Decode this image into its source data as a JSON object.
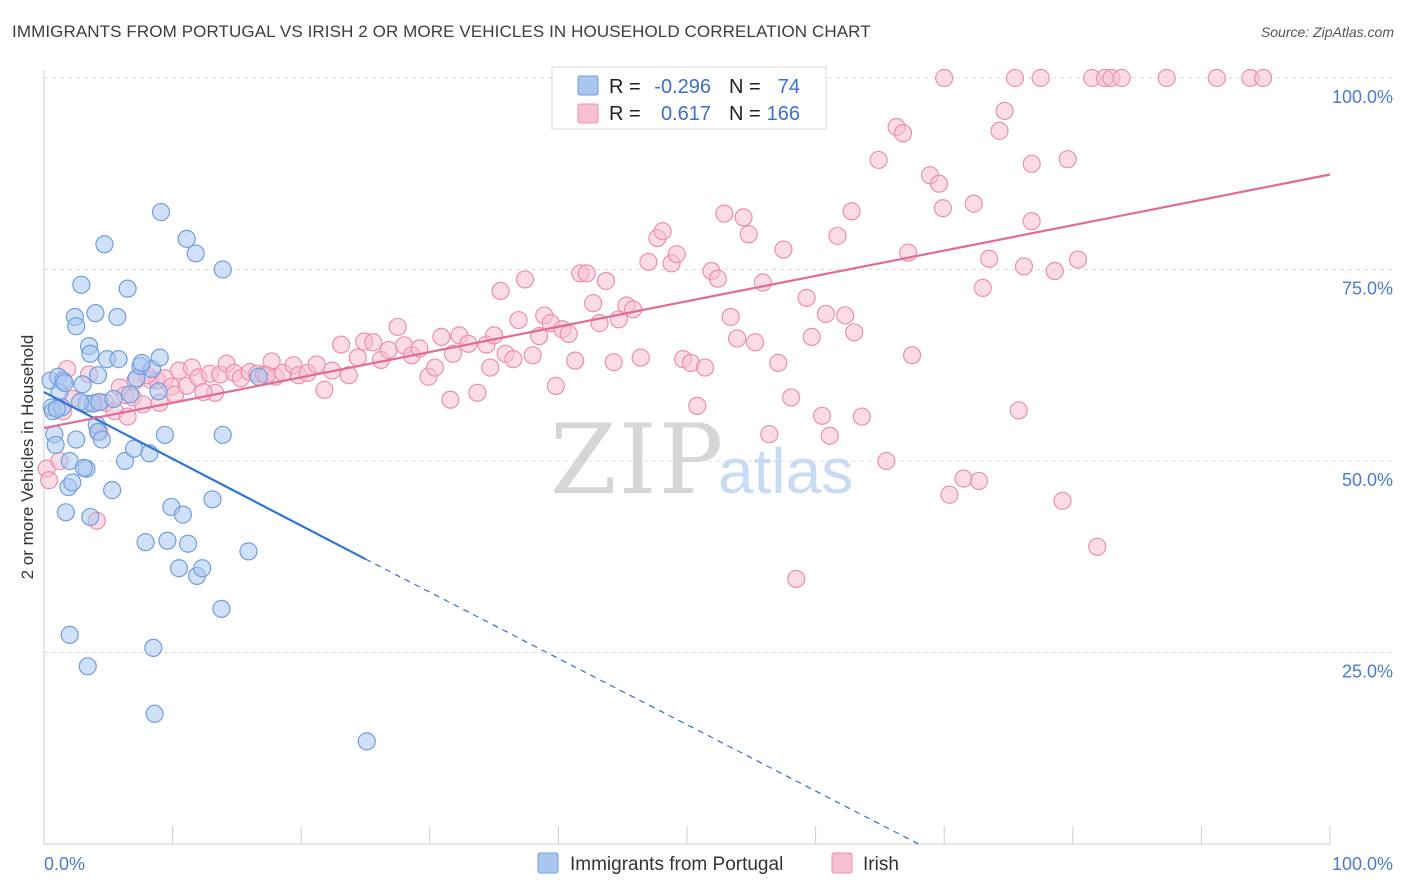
{
  "title": "IMMIGRANTS FROM PORTUGAL VS IRISH 2 OR MORE VEHICLES IN HOUSEHOLD CORRELATION CHART",
  "source": "Source: ZipAtlas.com",
  "watermark": {
    "zip": "ZIP",
    "atlas": "atlas"
  },
  "legend": {
    "r_label": "R =",
    "n_label": "N =",
    "series1": {
      "r": "-0.296",
      "n": "74"
    },
    "series2": {
      "r": "0.617",
      "n": "166"
    }
  },
  "colors": {
    "blue_fill": "#a9c6ee",
    "blue_stroke": "#6f9fe0",
    "blue_line": "#2f74d0",
    "pink_fill": "#f7c0d1",
    "pink_stroke": "#ec8fae",
    "pink_line": "#e26a95",
    "grid": "#dddddd",
    "axis_label": "#4a7bd0"
  },
  "chart_data": {
    "type": "scatter",
    "title": "IMMIGRANTS FROM PORTUGAL VS IRISH 2 OR MORE VEHICLES IN HOUSEHOLD CORRELATION CHART",
    "xlabel": "",
    "ylabel": "2 or more Vehicles in Household",
    "xlim": [
      0,
      100
    ],
    "ylim": [
      0,
      102
    ],
    "x_tick_labels": [
      "0.0%",
      "100.0%"
    ],
    "y_tick_labels": [
      "25.0%",
      "50.0%",
      "75.0%",
      "100.0%"
    ],
    "y_ticks": [
      25,
      50,
      75,
      100
    ],
    "grid": true,
    "legend_position": "top-center",
    "series": [
      {
        "name": "Immigrants from Portugal",
        "r": -0.296,
        "n": 74,
        "trend": {
          "x0": 0,
          "y0": 59.0,
          "x1": 25,
          "y1": 37.2,
          "dashed_to_x": 68,
          "dashed_to_y": 0
        },
        "points": [
          [
            0.5,
            60.5
          ],
          [
            0.6,
            57
          ],
          [
            0.7,
            56.5
          ],
          [
            0.8,
            53.5
          ],
          [
            1.1,
            61
          ],
          [
            1.2,
            59
          ],
          [
            1.4,
            57
          ],
          [
            1.5,
            60.5
          ],
          [
            1.7,
            43.3
          ],
          [
            1.9,
            46.6
          ],
          [
            2.0,
            50
          ],
          [
            2.0,
            27.3
          ],
          [
            2.2,
            47.2
          ],
          [
            2.5,
            52.8
          ],
          [
            2.4,
            68.8
          ],
          [
            2.5,
            67.6
          ],
          [
            2.9,
            73
          ],
          [
            3.0,
            60
          ],
          [
            3.3,
            57.5
          ],
          [
            3.3,
            49
          ],
          [
            3.4,
            23.2
          ],
          [
            3.5,
            65
          ],
          [
            3.6,
            64
          ],
          [
            3.6,
            42.7
          ],
          [
            3.8,
            57.5
          ],
          [
            4.0,
            69.3
          ],
          [
            4.1,
            54.7
          ],
          [
            4.2,
            53.8
          ],
          [
            4.3,
            57.7
          ],
          [
            4.5,
            52.8
          ],
          [
            4.7,
            78.3
          ],
          [
            4.9,
            63.3
          ],
          [
            5.3,
            46.2
          ],
          [
            5.7,
            68.8
          ],
          [
            5.8,
            63.3
          ],
          [
            6.3,
            50
          ],
          [
            6.5,
            72.5
          ],
          [
            6.7,
            58.7
          ],
          [
            7.0,
            51.6
          ],
          [
            7.2,
            60.8
          ],
          [
            7.5,
            62.4
          ],
          [
            7.9,
            39.4
          ],
          [
            8.2,
            51
          ],
          [
            8.4,
            62
          ],
          [
            8.5,
            25.6
          ],
          [
            8.6,
            17
          ],
          [
            8.9,
            59.1
          ],
          [
            9.0,
            63.5
          ],
          [
            9.1,
            82.5
          ],
          [
            9.4,
            53.4
          ],
          [
            9.6,
            39.6
          ],
          [
            9.9,
            44
          ],
          [
            10.5,
            36
          ],
          [
            10.8,
            43
          ],
          [
            11.1,
            79
          ],
          [
            11.2,
            39.2
          ],
          [
            11.8,
            77.1
          ],
          [
            11.9,
            35
          ],
          [
            12.3,
            36
          ],
          [
            13.1,
            45
          ],
          [
            13.8,
            30.7
          ],
          [
            13.9,
            75
          ],
          [
            13.9,
            53.4
          ],
          [
            15.9,
            38.2
          ],
          [
            16.7,
            61
          ],
          [
            25.1,
            13.4
          ],
          [
            1.0,
            56.8
          ],
          [
            2.8,
            57.7
          ],
          [
            0.9,
            52.1
          ],
          [
            4.2,
            61.2
          ],
          [
            7.6,
            62.8
          ],
          [
            5.4,
            58.1
          ],
          [
            1.6,
            60.2
          ],
          [
            3.1,
            49.1
          ]
        ]
      },
      {
        "name": "Irish",
        "r": 0.617,
        "n": 166,
        "trend": {
          "x0": 0,
          "y0": 54.3,
          "x1": 100,
          "y1": 87.4
        },
        "points": [
          [
            0.2,
            49
          ],
          [
            0.4,
            47.5
          ],
          [
            1.2,
            50
          ],
          [
            1.5,
            56.5
          ],
          [
            2.2,
            58.1
          ],
          [
            3.5,
            61.3
          ],
          [
            4.0,
            57.6
          ],
          [
            4.1,
            42.2
          ],
          [
            4.3,
            53.8
          ],
          [
            4.8,
            57.6
          ],
          [
            5.5,
            56.5
          ],
          [
            5.9,
            59.6
          ],
          [
            6.3,
            58.6
          ],
          [
            6.5,
            55.8
          ],
          [
            6.9,
            58.3
          ],
          [
            7.1,
            60.5
          ],
          [
            7.7,
            57.4
          ],
          [
            8.3,
            60.6
          ],
          [
            8.8,
            60.5
          ],
          [
            9.0,
            57.6
          ],
          [
            9.4,
            60.8
          ],
          [
            9.9,
            59.7
          ],
          [
            10.2,
            58.7
          ],
          [
            10.5,
            61.8
          ],
          [
            11.1,
            59.8
          ],
          [
            11.5,
            62.2
          ],
          [
            12.0,
            60.9
          ],
          [
            12.9,
            61.4
          ],
          [
            13.3,
            58.9
          ],
          [
            13.7,
            61.3
          ],
          [
            14.2,
            62.7
          ],
          [
            14.8,
            61.5
          ],
          [
            15.3,
            60.8
          ],
          [
            16.0,
            61.6
          ],
          [
            16.6,
            61.4
          ],
          [
            17.1,
            61.3
          ],
          [
            17.7,
            63.0
          ],
          [
            18.0,
            61
          ],
          [
            18.6,
            61.5
          ],
          [
            19.4,
            62.5
          ],
          [
            19.8,
            61.2
          ],
          [
            20.5,
            61.5
          ],
          [
            21.2,
            62.6
          ],
          [
            21.8,
            59.3
          ],
          [
            22.4,
            61.8
          ],
          [
            23.1,
            65.2
          ],
          [
            23.7,
            61.2
          ],
          [
            24.4,
            63.5
          ],
          [
            24.9,
            65.6
          ],
          [
            25.6,
            65.5
          ],
          [
            26.2,
            63.2
          ],
          [
            26.8,
            64.5
          ],
          [
            27.5,
            67.5
          ],
          [
            28.0,
            65.1
          ],
          [
            28.6,
            63.8
          ],
          [
            29.2,
            64.7
          ],
          [
            29.9,
            61
          ],
          [
            30.4,
            62.2
          ],
          [
            30.9,
            66.2
          ],
          [
            31.6,
            58
          ],
          [
            31.8,
            64
          ],
          [
            32.3,
            66.4
          ],
          [
            33.0,
            65.3
          ],
          [
            33.7,
            58.9
          ],
          [
            34.4,
            65.2
          ],
          [
            34.7,
            62.2
          ],
          [
            35.0,
            66.4
          ],
          [
            35.5,
            72.2
          ],
          [
            35.9,
            64
          ],
          [
            36.5,
            63.3
          ],
          [
            36.9,
            68.4
          ],
          [
            37.4,
            73.7
          ],
          [
            38.0,
            63.8
          ],
          [
            38.5,
            66.3
          ],
          [
            38.9,
            69
          ],
          [
            39.4,
            68.0
          ],
          [
            39.8,
            59.8
          ],
          [
            40.3,
            67.2
          ],
          [
            40.8,
            66.6
          ],
          [
            41.3,
            63.1
          ],
          [
            41.7,
            74.5
          ],
          [
            42.2,
            74.5
          ],
          [
            42.7,
            70.6
          ],
          [
            43.2,
            68
          ],
          [
            43.7,
            73.5
          ],
          [
            44.3,
            62.9
          ],
          [
            44.7,
            68.5
          ],
          [
            45.3,
            70.3
          ],
          [
            45.8,
            69.8
          ],
          [
            46.4,
            63.5
          ],
          [
            47.0,
            76
          ],
          [
            47.7,
            79.1
          ],
          [
            48.1,
            80
          ],
          [
            48.8,
            75.8
          ],
          [
            49.2,
            77
          ],
          [
            49.7,
            63.3
          ],
          [
            50.3,
            62.8
          ],
          [
            50.8,
            57.2
          ],
          [
            51.4,
            62.2
          ],
          [
            51.9,
            74.8
          ],
          [
            52.4,
            73.8
          ],
          [
            52.9,
            82.3
          ],
          [
            53.4,
            68.8
          ],
          [
            53.9,
            66
          ],
          [
            54.4,
            81.8
          ],
          [
            54.8,
            79.6
          ],
          [
            55.3,
            65.5
          ],
          [
            55.9,
            73.3
          ],
          [
            56.4,
            53.5
          ],
          [
            57.1,
            62.8
          ],
          [
            57.5,
            77.6
          ],
          [
            58.1,
            58.3
          ],
          [
            58.5,
            34.6
          ],
          [
            59.3,
            71.3
          ],
          [
            59.7,
            66.2
          ],
          [
            60.5,
            55.9
          ],
          [
            60.8,
            69.2
          ],
          [
            61.1,
            53.3
          ],
          [
            61.7,
            79.4
          ],
          [
            62.3,
            69
          ],
          [
            62.8,
            82.6
          ],
          [
            63.0,
            66.8
          ],
          [
            63.6,
            55.8
          ],
          [
            64.9,
            89.3
          ],
          [
            65.5,
            50
          ],
          [
            66.3,
            93.6
          ],
          [
            66.8,
            92.8
          ],
          [
            67.2,
            77.2
          ],
          [
            67.5,
            63.8
          ],
          [
            68.9,
            87.3
          ],
          [
            69.6,
            86.2
          ],
          [
            69.9,
            83
          ],
          [
            70.4,
            45.6
          ],
          [
            71.5,
            47.7
          ],
          [
            72.3,
            83.6
          ],
          [
            72.7,
            47.4
          ],
          [
            73.0,
            72.6
          ],
          [
            73.5,
            76.4
          ],
          [
            74.3,
            93.1
          ],
          [
            74.7,
            95.7
          ],
          [
            75.8,
            56.6
          ],
          [
            76.2,
            75.4
          ],
          [
            76.8,
            88.8
          ],
          [
            76.8,
            81.3
          ],
          [
            78.6,
            74.8
          ],
          [
            79.2,
            44.8
          ],
          [
            79.6,
            89.4
          ],
          [
            80.4,
            76.3
          ],
          [
            81.9,
            38.8
          ],
          [
            70.0,
            100
          ],
          [
            75.5,
            100
          ],
          [
            77.5,
            100
          ],
          [
            81.5,
            100
          ],
          [
            82.5,
            100
          ],
          [
            83.0,
            100
          ],
          [
            83.8,
            100
          ],
          [
            87.3,
            100
          ],
          [
            91.2,
            100
          ],
          [
            93.8,
            100
          ],
          [
            94.8,
            100
          ],
          [
            1.8,
            62.0
          ],
          [
            8.0,
            61.2
          ],
          [
            12.4,
            59.0
          ],
          [
            17.3,
            61.2
          ]
        ]
      }
    ]
  }
}
